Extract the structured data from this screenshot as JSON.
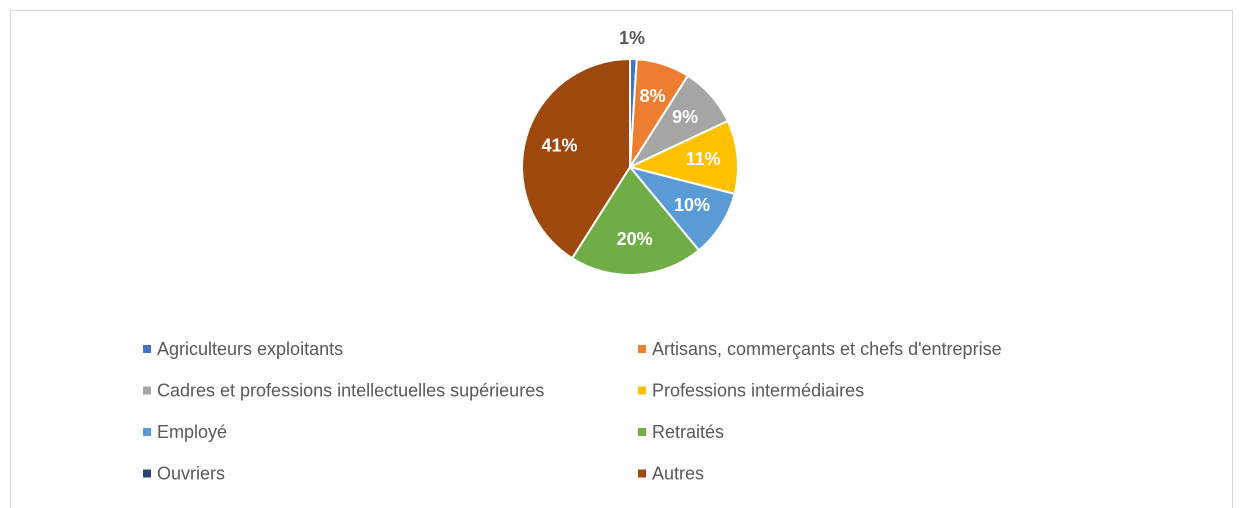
{
  "chart_data": {
    "type": "pie",
    "categories": [
      "Agriculteurs exploitants",
      "Artisans, commerçants et chefs d'entreprise",
      "Cadres et professions intellectuelles supérieures",
      "Professions intermédiaires",
      "Employé",
      "Retraités",
      "Ouvriers",
      "Autres"
    ],
    "values": [
      1,
      8,
      9,
      11,
      10,
      20,
      0,
      41
    ],
    "value_labels": [
      "1%",
      "8%",
      "9%",
      "11%",
      "10%",
      "20%",
      null,
      "41%"
    ],
    "colors": [
      "#4472c4",
      "#ed7d31",
      "#a5a5a5",
      "#ffc000",
      "#5b9bd5",
      "#70ad47",
      "#264478",
      "#9e480e"
    ],
    "legend": "bottom"
  }
}
